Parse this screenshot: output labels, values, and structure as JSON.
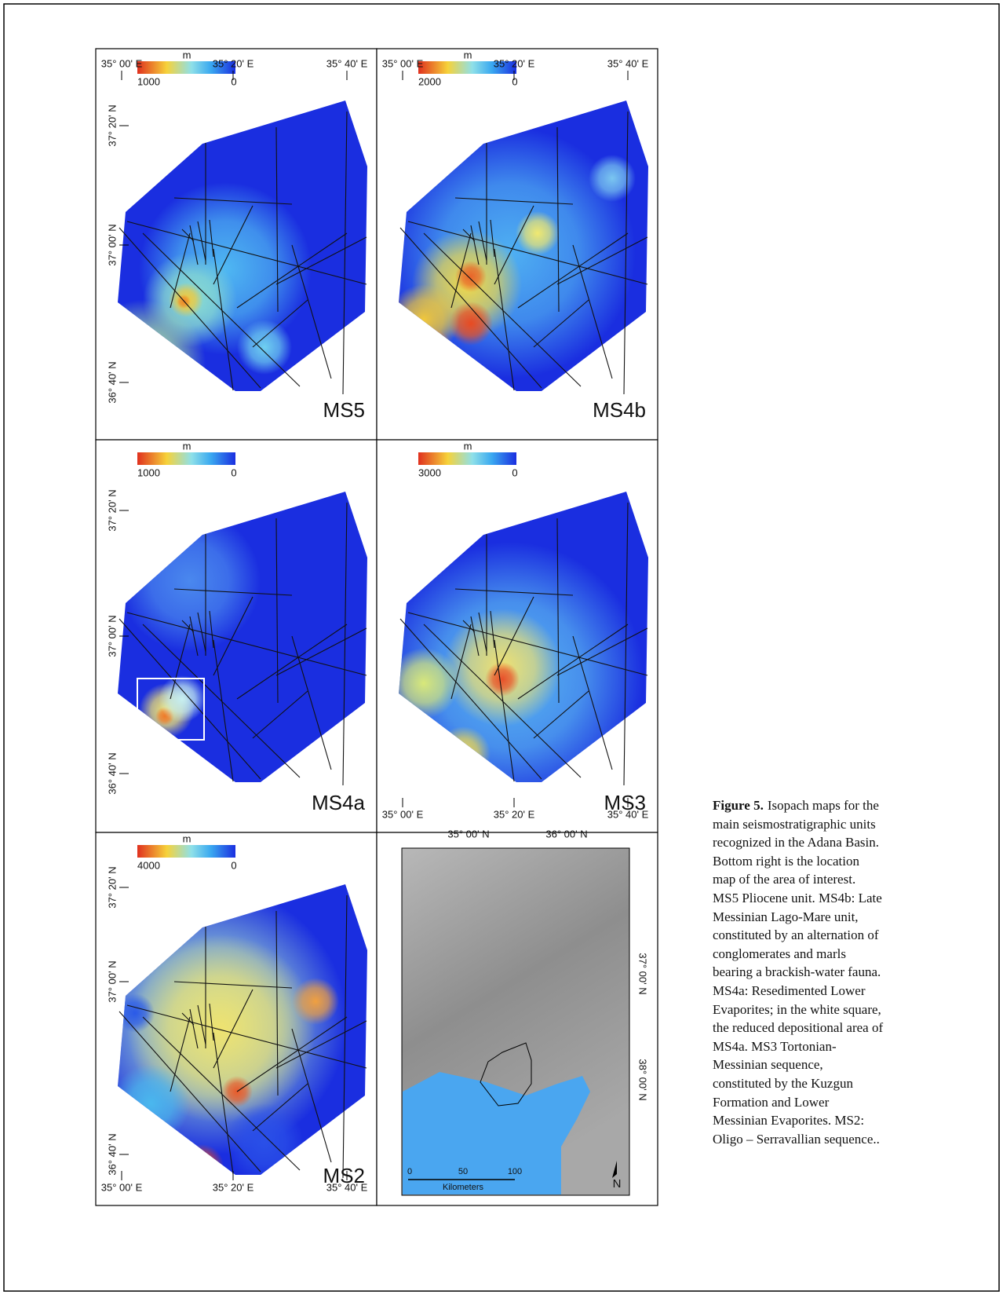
{
  "panels": [
    {
      "label": "MS5",
      "top_longitudes": [
        "35° 00' E",
        "35° 20' E",
        "35° 40' E"
      ],
      "latitudes": [
        "37° 20' N",
        "37° 00' N",
        "36° 40' N"
      ],
      "colorbar": {
        "unit": "m",
        "max": "1000",
        "min": "0"
      }
    },
    {
      "label": "MS4b",
      "top_longitudes": [
        "35° 00' E",
        "35° 20' E",
        "35° 40' E"
      ],
      "colorbar": {
        "unit": "m",
        "max": "2000",
        "min": "0"
      }
    },
    {
      "label": "MS4a",
      "latitudes": [
        "37° 20' N",
        "37° 00' N",
        "36° 40' N"
      ],
      "colorbar": {
        "unit": "m",
        "max": "1000",
        "min": "0"
      }
    },
    {
      "label": "MS3",
      "bottom_longitudes": [
        "35° 00' E",
        "35° 20' E",
        "35° 40' E"
      ],
      "colorbar": {
        "unit": "m",
        "max": "3000",
        "min": "0"
      }
    },
    {
      "label": "MS2",
      "bottom_longitudes": [
        "35° 00' E",
        "35° 20' E",
        "35° 40' E"
      ],
      "latitudes": [
        "37° 20' N",
        "37° 00' N",
        "36° 40' N"
      ],
      "colorbar": {
        "unit": "m",
        "max": "4000",
        "min": "0"
      }
    }
  ],
  "location_map": {
    "top_labels": [
      "35° 00' N",
      "36° 00' N"
    ],
    "side_labels": [
      "37° 00' N",
      "38° 00' N"
    ],
    "scale": [
      "0",
      "50",
      "100"
    ],
    "scale_unit": "Kilometers",
    "north": "N"
  },
  "caption": {
    "label": "Figure 5.",
    "lines": [
      "Isopach maps for the",
      "main seismostratigraphic units",
      "recognized in the Adana Basin.",
      "Bottom right is the location",
      "map of the area of interest.",
      "MS5 Pliocene unit. MS4b: Late",
      "Messinian Lago-Mare unit,",
      "constituted by an alternation of",
      "conglomerates and marls",
      "bearing a brackish-water fauna.",
      "MS4a: Resedimented Lower",
      "Evaporites; in the white square,",
      "the reduced depositional area of",
      "MS4a.  MS3 Tortonian-",
      "Messinian sequence,",
      "constituted by the Kuzgun",
      "Formation and Lower",
      "Messinian Evaporites. MS2:",
      "Oligo – Serravallian sequence.."
    ]
  }
}
